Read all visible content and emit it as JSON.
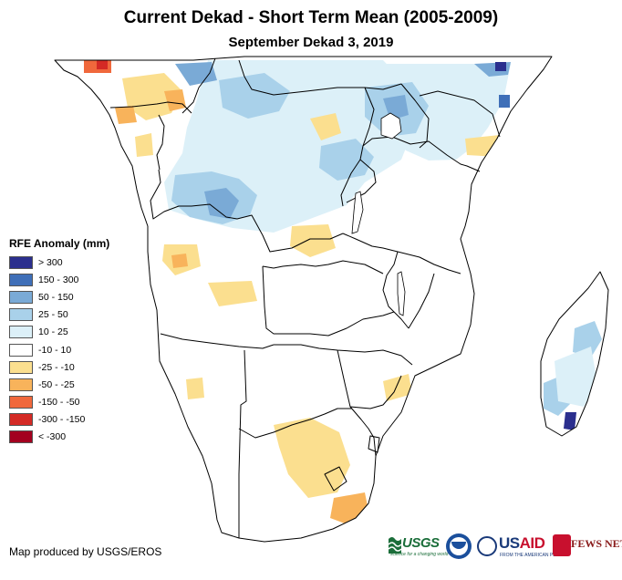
{
  "title": "Current Dekad - Short Term Mean (2005-2009)",
  "subtitle": "September Dekad 3, 2019",
  "legend": {
    "title": "RFE Anomaly (mm)",
    "items": [
      {
        "label": "> 300",
        "color": "#2b2f8e"
      },
      {
        "label": "150 - 300",
        "color": "#3f6fb8"
      },
      {
        "label": "50 - 150",
        "color": "#7aaad6"
      },
      {
        "label": "25 - 50",
        "color": "#a9d1ea"
      },
      {
        "label": "10 - 25",
        "color": "#dcf0f8"
      },
      {
        "label": "-10 - 10",
        "color": "#ffffff"
      },
      {
        "label": "-25 - -10",
        "color": "#fbdf8f"
      },
      {
        "label": "-50 - -25",
        "color": "#f8b35b"
      },
      {
        "label": "-150 - -50",
        "color": "#f0683c"
      },
      {
        "label": "-300 - -150",
        "color": "#d42a25"
      },
      {
        "label": "< -300",
        "color": "#a3001f"
      }
    ]
  },
  "credit": "Map produced by USGS/EROS",
  "logos": {
    "usgs": "USGS",
    "usgs_tagline": "science for a changing world",
    "usaid_prefix": "US",
    "usaid_suffix": "AID",
    "usaid_tagline": "FROM THE AMERICAN PEOPLE",
    "fews": "FEWS NET"
  }
}
